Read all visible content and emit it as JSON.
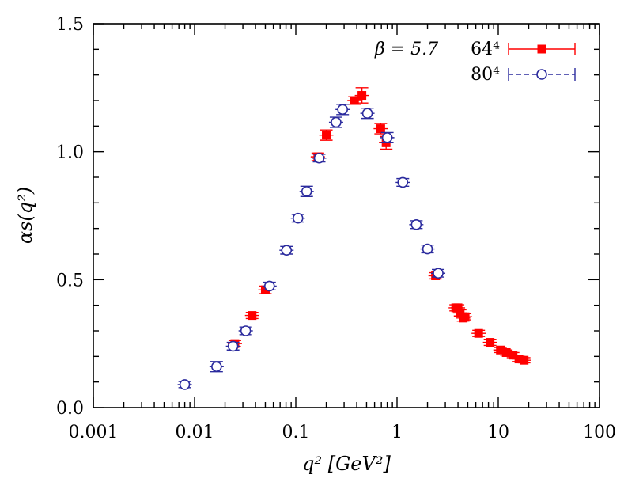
{
  "chart_data": {
    "type": "scatter",
    "xscale": "log",
    "xlim": [
      0.001,
      100
    ],
    "ylim": [
      0.0,
      1.5
    ],
    "xticks": [
      0.001,
      0.01,
      0.1,
      1,
      10,
      100
    ],
    "xtick_labels": [
      "0.001",
      "0.01",
      "0.1",
      "1",
      "10",
      "100"
    ],
    "yticks": [
      0.0,
      0.5,
      1.0,
      1.5
    ],
    "ytick_labels": [
      "0.0",
      "0.5",
      "1.0",
      "1.5"
    ],
    "xlabel": "q² [GeV²]",
    "ylabel": "αs(q²)",
    "grid": false,
    "legend_placement": "top-right",
    "legend_title": "β = 5.7",
    "series": [
      {
        "name": "64⁴",
        "marker": "filled-square",
        "line_style": "solid",
        "color": "#ff0000",
        "points": [
          {
            "x": 0.025,
            "y": 0.25,
            "err": 0.012
          },
          {
            "x": 0.037,
            "y": 0.36,
            "err": 0.012
          },
          {
            "x": 0.05,
            "y": 0.46,
            "err": 0.015
          },
          {
            "x": 0.165,
            "y": 0.98,
            "err": 0.015
          },
          {
            "x": 0.2,
            "y": 1.065,
            "err": 0.02
          },
          {
            "x": 0.38,
            "y": 1.2,
            "err": 0.015
          },
          {
            "x": 0.45,
            "y": 1.22,
            "err": 0.03
          },
          {
            "x": 0.69,
            "y": 1.09,
            "err": 0.02
          },
          {
            "x": 0.78,
            "y": 1.035,
            "err": 0.025
          },
          {
            "x": 2.4,
            "y": 0.515,
            "err": 0.012
          },
          {
            "x": 3.8,
            "y": 0.39,
            "err": 0.012
          },
          {
            "x": 4.0,
            "y": 0.39,
            "err": 0.012
          },
          {
            "x": 4.2,
            "y": 0.37,
            "err": 0.012
          },
          {
            "x": 4.5,
            "y": 0.35,
            "err": 0.012
          },
          {
            "x": 4.7,
            "y": 0.355,
            "err": 0.012
          },
          {
            "x": 6.4,
            "y": 0.29,
            "err": 0.012
          },
          {
            "x": 8.3,
            "y": 0.255,
            "err": 0.012
          },
          {
            "x": 10.5,
            "y": 0.225,
            "err": 0.01
          },
          {
            "x": 12.0,
            "y": 0.215,
            "err": 0.01
          },
          {
            "x": 14.0,
            "y": 0.205,
            "err": 0.01
          },
          {
            "x": 16.0,
            "y": 0.19,
            "err": 0.01
          },
          {
            "x": 18.0,
            "y": 0.185,
            "err": 0.01
          }
        ]
      },
      {
        "name": "80⁴",
        "marker": "open-circle",
        "line_style": "dashed",
        "color": "#2b2b9e",
        "points": [
          {
            "x": 0.008,
            "y": 0.09,
            "err": 0.012
          },
          {
            "x": 0.0165,
            "y": 0.16,
            "err": 0.02
          },
          {
            "x": 0.024,
            "y": 0.24,
            "err": 0.015
          },
          {
            "x": 0.032,
            "y": 0.3,
            "err": 0.015
          },
          {
            "x": 0.055,
            "y": 0.475,
            "err": 0.015
          },
          {
            "x": 0.081,
            "y": 0.615,
            "err": 0.015
          },
          {
            "x": 0.105,
            "y": 0.74,
            "err": 0.015
          },
          {
            "x": 0.128,
            "y": 0.845,
            "err": 0.02
          },
          {
            "x": 0.17,
            "y": 0.975,
            "err": 0.015
          },
          {
            "x": 0.25,
            "y": 1.115,
            "err": 0.02
          },
          {
            "x": 0.29,
            "y": 1.165,
            "err": 0.02
          },
          {
            "x": 0.51,
            "y": 1.15,
            "err": 0.02
          },
          {
            "x": 0.8,
            "y": 1.055,
            "err": 0.02
          },
          {
            "x": 1.14,
            "y": 0.88,
            "err": 0.015
          },
          {
            "x": 1.55,
            "y": 0.715,
            "err": 0.015
          },
          {
            "x": 2.0,
            "y": 0.62,
            "err": 0.015
          },
          {
            "x": 2.55,
            "y": 0.525,
            "err": 0.015
          }
        ]
      }
    ]
  }
}
